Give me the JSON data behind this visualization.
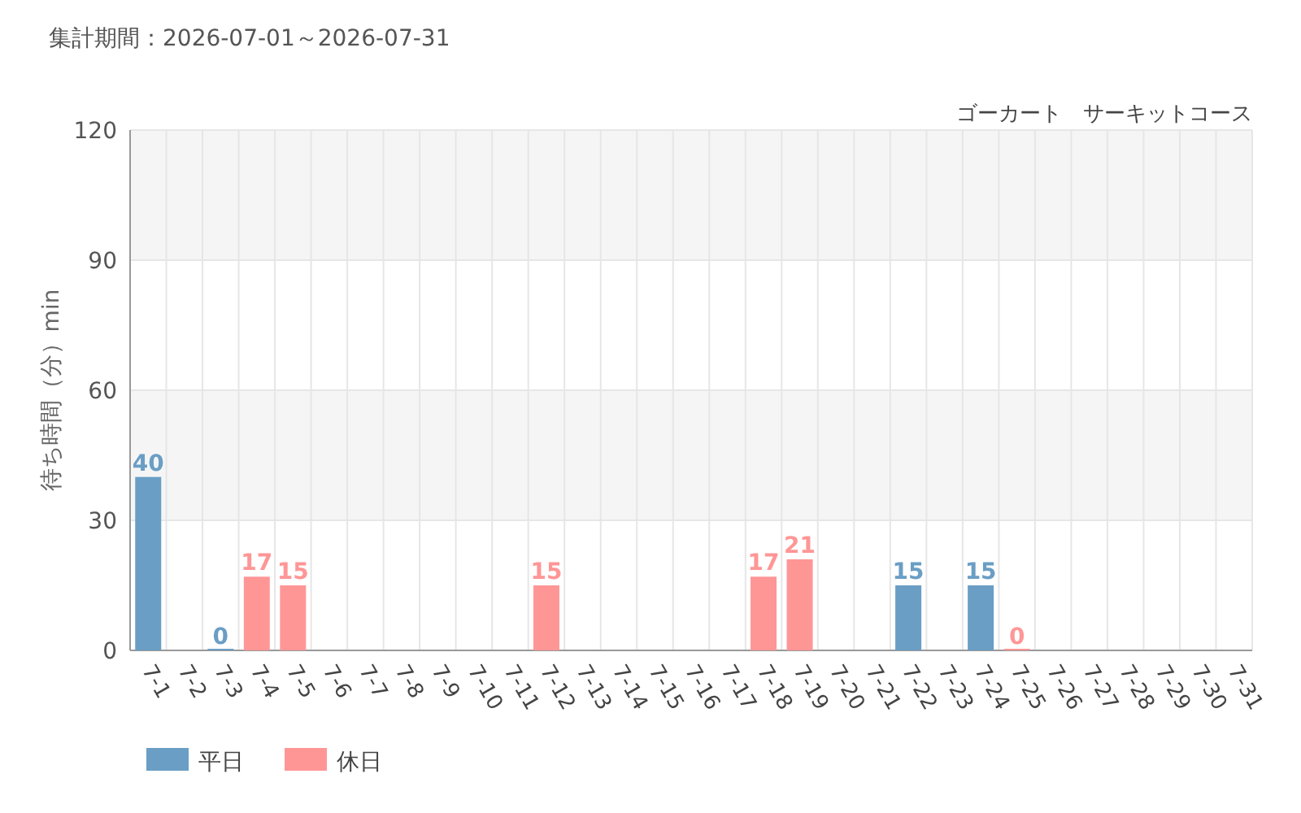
{
  "chart_data": {
    "type": "bar",
    "title": "集計期間：2026-07-01～2026-07-31",
    "subtitle": "ゴーカート　サーキットコース",
    "ylabel": "待ち時間（分）min",
    "categories": [
      "7-1",
      "7-2",
      "7-3",
      "7-4",
      "7-5",
      "7-6",
      "7-7",
      "7-8",
      "7-9",
      "7-10",
      "7-11",
      "7-12",
      "7-13",
      "7-14",
      "7-15",
      "7-16",
      "7-17",
      "7-18",
      "7-19",
      "7-20",
      "7-21",
      "7-22",
      "7-23",
      "7-24",
      "7-25",
      "7-26",
      "7-27",
      "7-28",
      "7-29",
      "7-30",
      "7-31"
    ],
    "series": [
      {
        "name": "平日",
        "color": "#6a9ec5",
        "values": [
          40,
          null,
          0,
          null,
          null,
          null,
          null,
          null,
          null,
          null,
          null,
          null,
          null,
          null,
          null,
          null,
          null,
          null,
          null,
          null,
          null,
          15,
          null,
          15,
          null,
          null,
          null,
          null,
          null,
          null,
          null
        ]
      },
      {
        "name": "休日",
        "color": "#ff9696",
        "values": [
          null,
          null,
          null,
          17,
          15,
          null,
          null,
          null,
          null,
          null,
          null,
          15,
          null,
          null,
          null,
          null,
          null,
          17,
          21,
          null,
          null,
          null,
          null,
          null,
          0,
          null,
          null,
          null,
          null,
          null,
          null
        ]
      }
    ],
    "ylim": [
      0,
      120
    ],
    "yticks": [
      0,
      30,
      60,
      90,
      120
    ],
    "grid": true,
    "legend": "bottom left",
    "data_labels": true
  }
}
